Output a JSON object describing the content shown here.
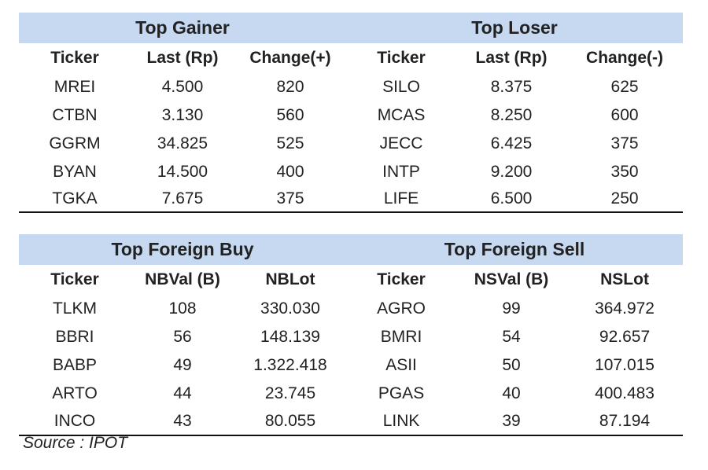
{
  "tables": [
    {
      "left_title": "Top Gainer",
      "right_title": "Top Loser",
      "headers": [
        "Ticker",
        "Last (Rp)",
        "Change(+)",
        "Ticker",
        "Last (Rp)",
        "Change(-)"
      ],
      "rows": [
        [
          "MREI",
          "4.500",
          "820",
          "SILO",
          "8.375",
          "625"
        ],
        [
          "CTBN",
          "3.130",
          "560",
          "MCAS",
          "8.250",
          "600"
        ],
        [
          "GGRM",
          "34.825",
          "525",
          "JECC",
          "6.425",
          "375"
        ],
        [
          "BYAN",
          "14.500",
          "400",
          "INTP",
          "9.200",
          "350"
        ],
        [
          "TGKA",
          "7.675",
          "375",
          "LIFE",
          "6.500",
          "250"
        ]
      ]
    },
    {
      "left_title": "Top Foreign Buy",
      "right_title": "Top Foreign Sell",
      "headers": [
        "Ticker",
        "NBVal (B)",
        "NBLot",
        "Ticker",
        "NSVal (B)",
        "NSLot"
      ],
      "rows": [
        [
          "TLKM",
          "108",
          "330.030",
          "AGRO",
          "99",
          "364.972"
        ],
        [
          "BBRI",
          "56",
          "148.139",
          "BMRI",
          "54",
          "92.657"
        ],
        [
          "BABP",
          "49",
          "1.322.418",
          "ASII",
          "50",
          "107.015"
        ],
        [
          "ARTO",
          "44",
          "23.745",
          "PGAS",
          "40",
          "400.483"
        ],
        [
          "INCO",
          "43",
          "80.055",
          "LINK",
          "39",
          "87.194"
        ]
      ]
    }
  ],
  "source": "Source : IPOT",
  "colors": {
    "banner_bg": "#c6d9f0",
    "rule": "#111111"
  }
}
